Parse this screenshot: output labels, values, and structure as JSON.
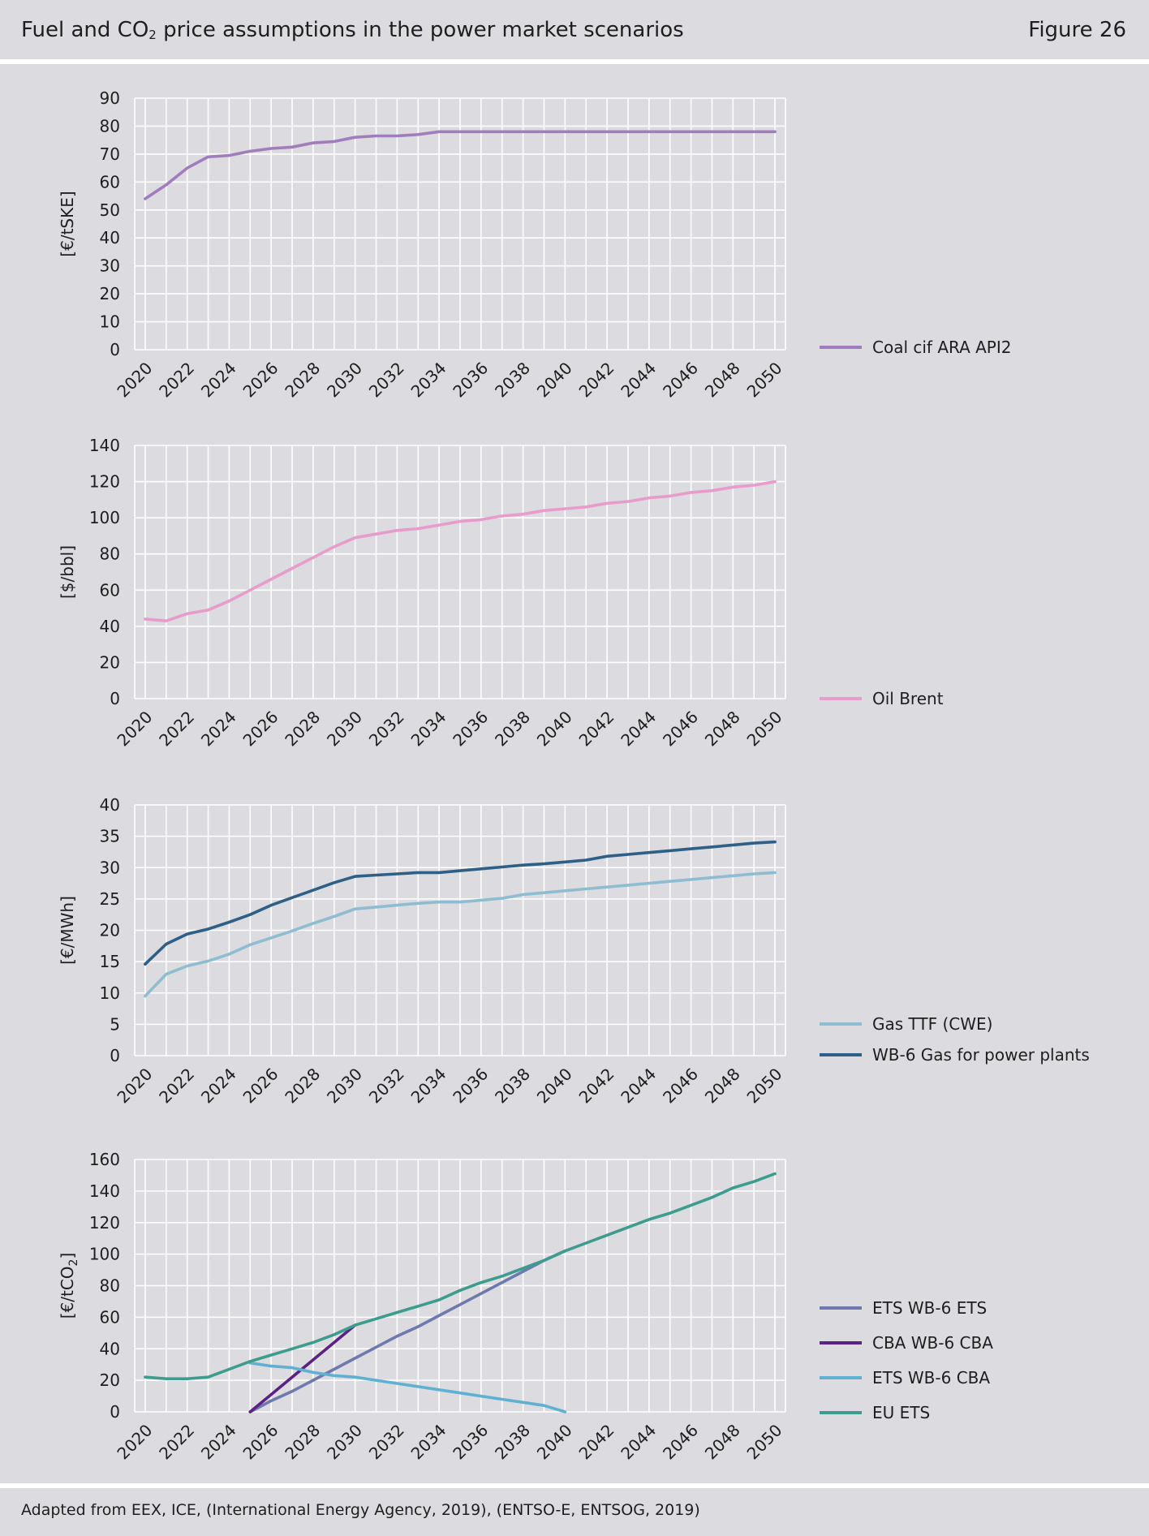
{
  "header": {
    "title_part1": "Fuel and CO",
    "title_sub": "2",
    "title_part2": " price assumptions in the power market scenarios",
    "figure_label": "Figure 26"
  },
  "footer": {
    "source": "Adapted from EEX, ICE, (International Energy Agency, 2019), (ENTSO-E, ENTSOG, 2019)"
  },
  "chart_data": [
    {
      "type": "line",
      "ylabel": "[€/tSKE]",
      "ylim": [
        0,
        90
      ],
      "yticks": [
        0,
        10,
        20,
        30,
        40,
        50,
        60,
        70,
        80,
        90
      ],
      "xlim": [
        2019.5,
        2050.5
      ],
      "xticks": [
        2020,
        2022,
        2024,
        2026,
        2028,
        2030,
        2032,
        2034,
        2036,
        2038,
        2040,
        2042,
        2044,
        2046,
        2048,
        2050
      ],
      "grid": true,
      "legend": "right",
      "series": [
        {
          "name": "Coal cif ARA API2",
          "color": "#a27dbd",
          "x": [
            2020,
            2021,
            2022,
            2023,
            2024,
            2025,
            2026,
            2027,
            2028,
            2029,
            2030,
            2031,
            2032,
            2033,
            2034,
            2035,
            2036,
            2037,
            2038,
            2039,
            2040,
            2041,
            2042,
            2043,
            2044,
            2045,
            2046,
            2047,
            2048,
            2049,
            2050
          ],
          "y": [
            54,
            59,
            65,
            69,
            69.5,
            71,
            72,
            72.5,
            74,
            74.5,
            76,
            76.5,
            76.5,
            77,
            78,
            78,
            78,
            78,
            78,
            78,
            78,
            78,
            78,
            78,
            78,
            78,
            78,
            78,
            78,
            78,
            78
          ]
        }
      ]
    },
    {
      "type": "line",
      "ylabel": "[$/bbl]",
      "ylim": [
        0,
        140
      ],
      "yticks": [
        0,
        20,
        40,
        60,
        80,
        100,
        120,
        140
      ],
      "xlim": [
        2019.5,
        2050.5
      ],
      "xticks": [
        2020,
        2022,
        2024,
        2026,
        2028,
        2030,
        2032,
        2034,
        2036,
        2038,
        2040,
        2042,
        2044,
        2046,
        2048,
        2050
      ],
      "grid": true,
      "legend": "right",
      "series": [
        {
          "name": "Oil Brent",
          "color": "#e79ccb",
          "x": [
            2020,
            2021,
            2022,
            2023,
            2024,
            2025,
            2026,
            2027,
            2028,
            2029,
            2030,
            2031,
            2032,
            2033,
            2034,
            2035,
            2036,
            2037,
            2038,
            2039,
            2040,
            2041,
            2042,
            2043,
            2044,
            2045,
            2046,
            2047,
            2048,
            2049,
            2050
          ],
          "y": [
            44,
            43,
            47,
            49,
            54,
            60,
            66,
            72,
            78,
            84,
            89,
            91,
            93,
            94,
            96,
            98,
            99,
            101,
            102,
            104,
            105,
            106,
            108,
            109,
            111,
            112,
            114,
            115,
            117,
            118,
            120
          ]
        }
      ]
    },
    {
      "type": "line",
      "ylabel": "[€/MWh]",
      "ylim": [
        0,
        40
      ],
      "yticks": [
        0,
        5,
        10,
        15,
        20,
        25,
        30,
        35,
        40
      ],
      "xlim": [
        2019.5,
        2050.5
      ],
      "xticks": [
        2020,
        2022,
        2024,
        2026,
        2028,
        2030,
        2032,
        2034,
        2036,
        2038,
        2040,
        2042,
        2044,
        2046,
        2048,
        2050
      ],
      "grid": true,
      "legend": "right",
      "series": [
        {
          "name": "Gas TTF (CWE)",
          "color": "#8ebdd1",
          "x": [
            2020,
            2021,
            2022,
            2023,
            2024,
            2025,
            2026,
            2027,
            2028,
            2029,
            2030,
            2031,
            2032,
            2033,
            2034,
            2035,
            2036,
            2037,
            2038,
            2039,
            2040,
            2041,
            2042,
            2043,
            2044,
            2045,
            2046,
            2047,
            2048,
            2049,
            2050
          ],
          "y": [
            9.5,
            13,
            14.3,
            15.1,
            16.2,
            17.7,
            18.8,
            19.9,
            21.1,
            22.2,
            23.4,
            23.7,
            24,
            24.3,
            24.5,
            24.5,
            24.8,
            25.1,
            25.7,
            26,
            26.3,
            26.6,
            26.9,
            27.2,
            27.5,
            27.8,
            28.1,
            28.4,
            28.7,
            29,
            29.2
          ]
        },
        {
          "name": "WB-6 Gas for power plants",
          "color": "#2e5f86",
          "x": [
            2020,
            2021,
            2022,
            2023,
            2024,
            2025,
            2026,
            2027,
            2028,
            2029,
            2030,
            2031,
            2032,
            2033,
            2034,
            2035,
            2036,
            2037,
            2038,
            2039,
            2040,
            2041,
            2042,
            2043,
            2044,
            2045,
            2046,
            2047,
            2048,
            2049,
            2050
          ],
          "y": [
            14.6,
            17.8,
            19.4,
            20.2,
            21.3,
            22.5,
            24,
            25.2,
            26.4,
            27.6,
            28.6,
            28.8,
            29,
            29.2,
            29.2,
            29.5,
            29.8,
            30.1,
            30.4,
            30.6,
            30.9,
            31.2,
            31.8,
            32.1,
            32.4,
            32.7,
            33,
            33.3,
            33.6,
            33.9,
            34.1
          ]
        }
      ]
    },
    {
      "type": "line",
      "ylabel_part1": "[€/tCO",
      "ylabel_sub": "2",
      "ylabel_part2": "]",
      "ylim": [
        0,
        160
      ],
      "yticks": [
        0,
        20,
        40,
        60,
        80,
        100,
        120,
        140,
        160
      ],
      "xlim": [
        2019.5,
        2050.5
      ],
      "xticks": [
        2020,
        2022,
        2024,
        2026,
        2028,
        2030,
        2032,
        2034,
        2036,
        2038,
        2040,
        2042,
        2044,
        2046,
        2048,
        2050
      ],
      "grid": true,
      "legend": "right",
      "series": [
        {
          "name": "ETS WB-6 ETS",
          "color": "#6e79ae",
          "x": [
            2025,
            2026,
            2027,
            2028,
            2029,
            2030,
            2031,
            2032,
            2033,
            2034,
            2035,
            2036,
            2037,
            2038,
            2039,
            2040
          ],
          "y": [
            0,
            7,
            13,
            20,
            27,
            34,
            41,
            48,
            54,
            61,
            68,
            75,
            82,
            89,
            96,
            102
          ]
        },
        {
          "name": "CBA WB-6 CBA",
          "color": "#5a2282",
          "x": [
            2025,
            2026,
            2027,
            2028,
            2029,
            2030
          ],
          "y": [
            0,
            11,
            22,
            33,
            44,
            55
          ]
        },
        {
          "name": "ETS WB-6 CBA",
          "color": "#5fb0d2",
          "x": [
            2025,
            2026,
            2027,
            2028,
            2029,
            2030,
            2031,
            2032,
            2033,
            2034,
            2035,
            2036,
            2037,
            2038,
            2039,
            2040
          ],
          "y": [
            31,
            29,
            28,
            25,
            23,
            22,
            20,
            18,
            16,
            14,
            12,
            10,
            8,
            6,
            4,
            0
          ]
        },
        {
          "name": "EU ETS",
          "color": "#3e9c8e",
          "x": [
            2020,
            2021,
            2022,
            2023,
            2024,
            2025,
            2026,
            2027,
            2028,
            2029,
            2030,
            2031,
            2032,
            2033,
            2034,
            2035,
            2036,
            2037,
            2038,
            2039,
            2040,
            2041,
            2042,
            2043,
            2044,
            2045,
            2046,
            2047,
            2048,
            2049,
            2050
          ],
          "y": [
            22,
            21,
            21,
            22,
            27,
            32,
            36,
            40,
            44,
            49,
            55,
            59,
            63,
            67,
            71,
            77,
            82,
            86,
            91,
            96,
            102,
            107,
            112,
            117,
            122,
            126,
            131,
            136,
            142,
            146,
            151
          ]
        }
      ]
    }
  ]
}
